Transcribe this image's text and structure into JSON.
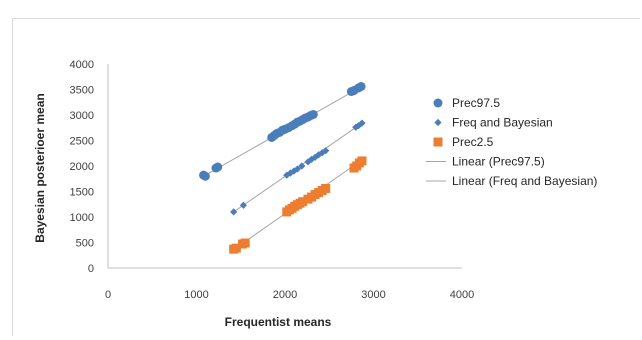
{
  "chart_data": {
    "type": "scatter",
    "title": "",
    "xlabel": "Frequentist means",
    "ylabel": "Bayesian posterioer  mean",
    "xlim": [
      0,
      4000
    ],
    "ylim": [
      0,
      4000
    ],
    "x_ticks": [
      "0",
      "1000",
      "2000",
      "3000",
      "4000"
    ],
    "y_ticks": [
      "0",
      "500",
      "1000",
      "1500",
      "2000",
      "2500",
      "3000",
      "3500",
      "4000"
    ],
    "grid": false,
    "legend_position": "right",
    "series": [
      {
        "name": "Prec97.5",
        "marker": "circle",
        "color": "#4a7ebb",
        "points": [
          [
            1080,
            1820
          ],
          [
            1100,
            1800
          ],
          [
            1220,
            1960
          ],
          [
            1240,
            1980
          ],
          [
            1850,
            2560
          ],
          [
            1880,
            2600
          ],
          [
            1910,
            2640
          ],
          [
            1940,
            2660
          ],
          [
            1970,
            2700
          ],
          [
            2000,
            2720
          ],
          [
            2040,
            2750
          ],
          [
            2080,
            2790
          ],
          [
            2110,
            2820
          ],
          [
            2140,
            2860
          ],
          [
            2170,
            2880
          ],
          [
            2200,
            2910
          ],
          [
            2230,
            2940
          ],
          [
            2260,
            2960
          ],
          [
            2290,
            2990
          ],
          [
            2320,
            3010
          ],
          [
            2750,
            3460
          ],
          [
            2780,
            3480
          ],
          [
            2830,
            3530
          ],
          [
            2860,
            3560
          ]
        ]
      },
      {
        "name": "Freq and Bayesian",
        "marker": "diamond",
        "color": "#4a7ebb",
        "points": [
          [
            1420,
            1100
          ],
          [
            1530,
            1230
          ],
          [
            2020,
            1820
          ],
          [
            2060,
            1860
          ],
          [
            2100,
            1900
          ],
          [
            2140,
            1940
          ],
          [
            2190,
            2000
          ],
          [
            2260,
            2080
          ],
          [
            2300,
            2130
          ],
          [
            2340,
            2170
          ],
          [
            2380,
            2220
          ],
          [
            2420,
            2260
          ],
          [
            2460,
            2300
          ],
          [
            2800,
            2760
          ],
          [
            2830,
            2790
          ],
          [
            2870,
            2840
          ]
        ]
      },
      {
        "name": "Prec2.5",
        "marker": "square",
        "color": "#ed7d31",
        "points": [
          [
            1420,
            370
          ],
          [
            1450,
            390
          ],
          [
            1520,
            470
          ],
          [
            1550,
            490
          ],
          [
            2020,
            1100
          ],
          [
            2050,
            1140
          ],
          [
            2080,
            1170
          ],
          [
            2110,
            1210
          ],
          [
            2140,
            1240
          ],
          [
            2170,
            1270
          ],
          [
            2200,
            1300
          ],
          [
            2260,
            1350
          ],
          [
            2300,
            1390
          ],
          [
            2340,
            1440
          ],
          [
            2380,
            1480
          ],
          [
            2420,
            1520
          ],
          [
            2460,
            1560
          ],
          [
            2780,
            1960
          ],
          [
            2810,
            2000
          ],
          [
            2840,
            2060
          ],
          [
            2870,
            2100
          ]
        ]
      }
    ],
    "trendlines": [
      {
        "name": "Linear (Prec97.5)",
        "color": "#a5a5a5",
        "from": [
          1080,
          1800
        ],
        "to": [
          2870,
          3560
        ]
      },
      {
        "name": "Linear (Freq and Bayesian)",
        "color": "#a5a5a5",
        "from": [
          1420,
          1100
        ],
        "to": [
          2870,
          2840
        ]
      },
      {
        "name": "",
        "color": "#a5a5a5",
        "from": [
          1420,
          360
        ],
        "to": [
          2870,
          2120
        ]
      }
    ],
    "legend": [
      {
        "label": "Prec97.5",
        "symbol": "circle",
        "color": "#4a7ebb"
      },
      {
        "label": "Freq and Bayesian",
        "symbol": "diamond",
        "color": "#4a7ebb"
      },
      {
        "label": "Prec2.5",
        "symbol": "square",
        "color": "#ed7d31"
      },
      {
        "label": "Linear (Prec97.5)",
        "symbol": "line",
        "color": "#a5a5a5"
      },
      {
        "label": "Linear (Freq and Bayesian)",
        "symbol": "line",
        "color": "#a5a5a5"
      }
    ]
  }
}
